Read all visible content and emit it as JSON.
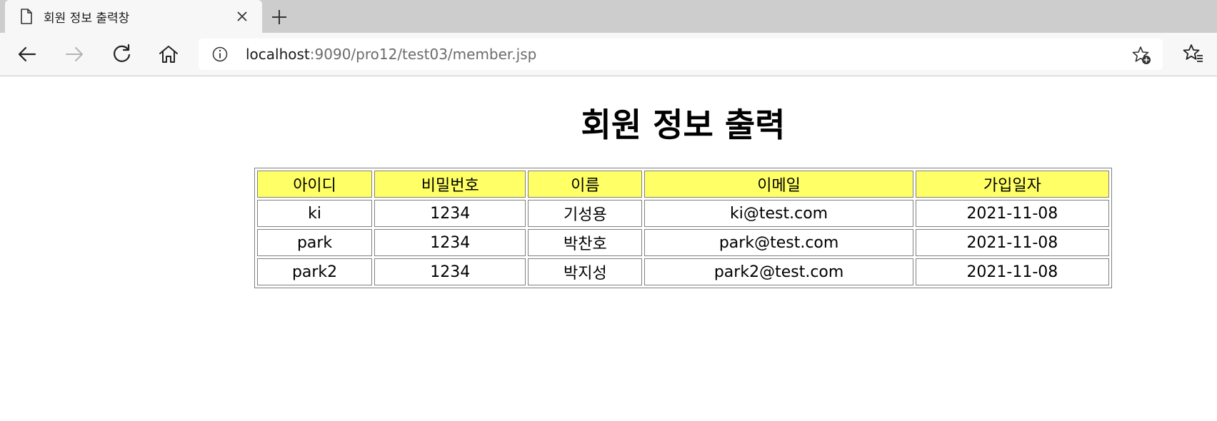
{
  "browser": {
    "tab_title": "회원 정보 출력창",
    "address": {
      "host": "localhost",
      "path": ":9090/pro12/test03/member.jsp"
    }
  },
  "page": {
    "title": "회원 정보 출력",
    "headers": [
      "아이디",
      "비밀번호",
      "이름",
      "이메일",
      "가입일자"
    ],
    "rows": [
      [
        "ki",
        "1234",
        "기성용",
        "ki@test.com",
        "2021-11-08"
      ],
      [
        "park",
        "1234",
        "박찬호",
        "park@test.com",
        "2021-11-08"
      ],
      [
        "park2",
        "1234",
        "박지성",
        "park2@test.com",
        "2021-11-08"
      ]
    ]
  },
  "colors": {
    "header_bg": "#ffff66",
    "tabstrip_bg": "#cdcdcd",
    "toolbar_bg": "#f7f7f7"
  },
  "icons": [
    "page-icon",
    "close-icon",
    "plus-icon",
    "back-arrow-icon",
    "forward-arrow-icon",
    "refresh-icon",
    "home-icon",
    "info-icon",
    "star-plus-icon",
    "favorites-icon"
  ]
}
